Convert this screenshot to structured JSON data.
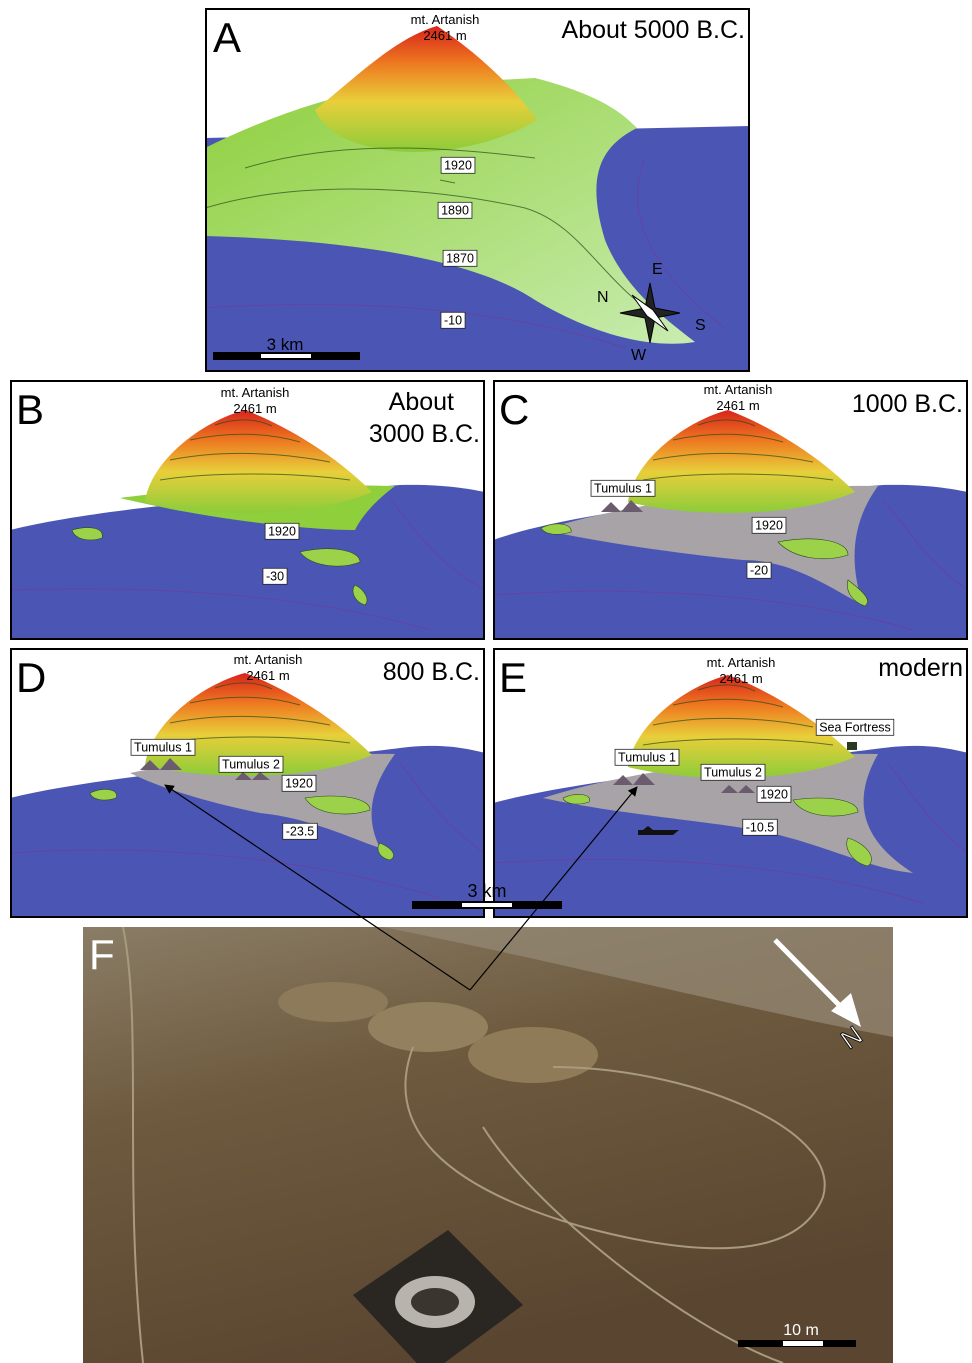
{
  "panels": [
    {
      "letter": "A",
      "period": [
        "About 5000 B.C."
      ],
      "peak_name": "mt. Artanish",
      "peak_height": "2461 m",
      "labels": [
        "1920",
        "1890",
        "1870",
        "-10"
      ],
      "scale": "3 km",
      "compass": [
        "N",
        "E",
        "S",
        "W"
      ]
    },
    {
      "letter": "B",
      "period": [
        "About",
        "3000 B.C."
      ],
      "peak_name": "mt. Artanish",
      "peak_height": "2461 m",
      "labels": [
        "1920",
        "-30"
      ]
    },
    {
      "letter": "C",
      "period": [
        "1000 B.C."
      ],
      "peak_name": "mt. Artanish",
      "peak_height": "2461 m",
      "labels": [
        "Tumulus 1",
        "1920",
        "-20"
      ]
    },
    {
      "letter": "D",
      "period": [
        "800 B.C."
      ],
      "peak_name": "mt. Artanish",
      "peak_height": "2461 m",
      "labels": [
        "Tumulus 1",
        "Tumulus 2",
        "1920",
        "-23.5"
      ]
    },
    {
      "letter": "E",
      "period": [
        "modern"
      ],
      "peak_name": "mt. Artanish",
      "peak_height": "2461 m",
      "labels": [
        "Tumulus 1",
        "Tumulus 2",
        "Sea Fortress",
        "1920",
        "-10.5"
      ]
    }
  ],
  "shared_scale": "3 km",
  "photo": {
    "letter": "F",
    "north": "N",
    "scale": "10 m"
  }
}
